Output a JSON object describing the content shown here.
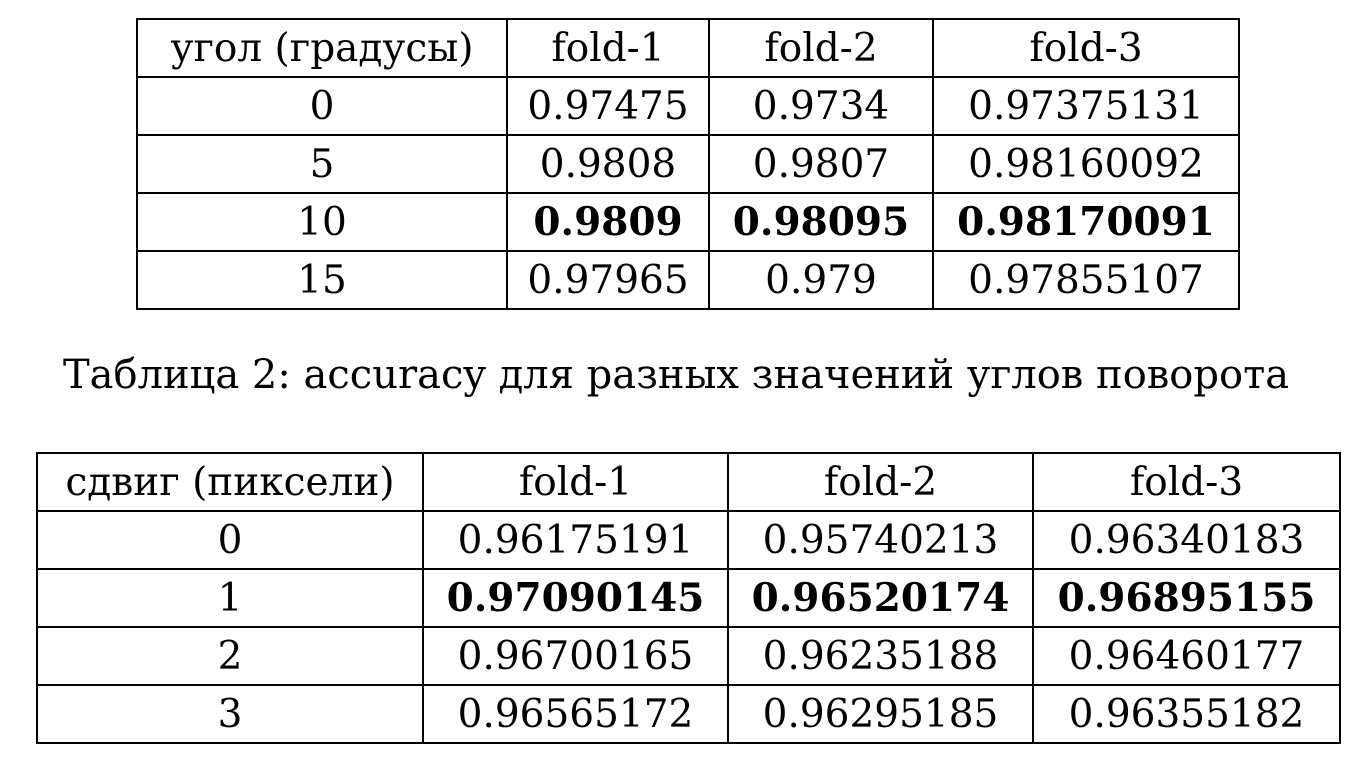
{
  "table_angle": {
    "header": [
      "угол (градусы)",
      "fold-1",
      "fold-2",
      "fold-3"
    ],
    "rows": [
      {
        "key": "0",
        "values": [
          "0.97475",
          "0.9734",
          "0.97375131"
        ],
        "bold": false
      },
      {
        "key": "5",
        "values": [
          "0.9808",
          "0.9807",
          "0.98160092"
        ],
        "bold": false
      },
      {
        "key": "10",
        "values": [
          "0.9809",
          "0.98095",
          "0.98170091"
        ],
        "bold": true
      },
      {
        "key": "15",
        "values": [
          "0.97965",
          "0.979",
          "0.97855107"
        ],
        "bold": false
      }
    ]
  },
  "caption_angle": "Таблица 2: accuracy для разных значений углов поворота",
  "table_shift": {
    "header": [
      "сдвиг (пиксели)",
      "fold-1",
      "fold-2",
      "fold-3"
    ],
    "rows": [
      {
        "key": "0",
        "values": [
          "0.96175191",
          "0.95740213",
          "0.96340183"
        ],
        "bold": false
      },
      {
        "key": "1",
        "values": [
          "0.97090145",
          "0.96520174",
          "0.96895155"
        ],
        "bold": true
      },
      {
        "key": "2",
        "values": [
          "0.96700165",
          "0.96235188",
          "0.96460177"
        ],
        "bold": false
      },
      {
        "key": "3",
        "values": [
          "0.96565172",
          "0.96295185",
          "0.96355182"
        ],
        "bold": false
      }
    ]
  }
}
